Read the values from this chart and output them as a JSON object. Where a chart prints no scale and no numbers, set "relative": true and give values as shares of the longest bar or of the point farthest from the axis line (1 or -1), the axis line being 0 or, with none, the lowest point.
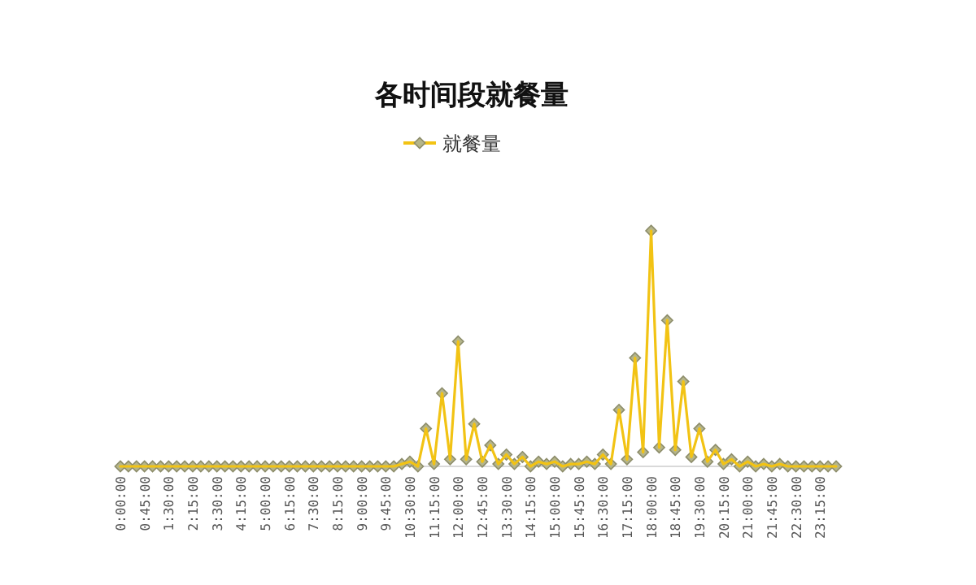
{
  "chart_data": {
    "type": "line",
    "title": "各时间段就餐量",
    "relative": true,
    "marker": "diamond",
    "legend": "top",
    "categories": [
      "0:00:00",
      null,
      null,
      "0:45:00",
      null,
      null,
      "1:30:00",
      null,
      null,
      "2:15:00",
      null,
      null,
      "3:30:00",
      null,
      null,
      "4:15:00",
      null,
      null,
      "5:00:00",
      null,
      null,
      "6:15:00",
      null,
      null,
      "7:30:00",
      null,
      null,
      "8:15:00",
      null,
      null,
      "9:00:00",
      null,
      null,
      "9:45:00",
      null,
      null,
      "10:30:00",
      null,
      null,
      "11:15:00",
      null,
      null,
      "12:00:00",
      null,
      null,
      "12:45:00",
      null,
      null,
      "13:30:00",
      null,
      null,
      "14:15:00",
      null,
      null,
      "15:00:00",
      null,
      null,
      "15:45:00",
      null,
      null,
      "16:30:00",
      null,
      null,
      "17:15:00",
      null,
      null,
      "18:00:00",
      null,
      null,
      "18:45:00",
      null,
      null,
      "19:30:00",
      null,
      null,
      "20:15:00",
      null,
      null,
      "21:00:00",
      null,
      null,
      "21:45:00",
      null,
      null,
      "22:30:00",
      null,
      null,
      "23:15:00",
      null,
      null
    ],
    "series": [
      {
        "name": "就餐量",
        "color": "#f2c314",
        "values": [
          0,
          0,
          0,
          0,
          0,
          0,
          0,
          0,
          0,
          0,
          0,
          0,
          0,
          0,
          0,
          0,
          0,
          0,
          0,
          0,
          0,
          0,
          0,
          0,
          0,
          0,
          0,
          0,
          0,
          0,
          0,
          0,
          0,
          0,
          0,
          0.01,
          0.02,
          0,
          0.16,
          0.01,
          0.31,
          0.03,
          0.53,
          0.03,
          0.18,
          0.02,
          0.09,
          0.01,
          0.05,
          0.01,
          0.04,
          0,
          0.02,
          0.01,
          0.02,
          0,
          0.01,
          0.01,
          0.02,
          0.01,
          0.05,
          0.01,
          0.24,
          0.03,
          0.46,
          0.06,
          1,
          0.08,
          0.62,
          0.07,
          0.36,
          0.04,
          0.16,
          0.02,
          0.07,
          0.01,
          0.03,
          0,
          0.02,
          0,
          0.01,
          0,
          0.01,
          0,
          0,
          0,
          0,
          0,
          0,
          0
        ]
      }
    ]
  }
}
